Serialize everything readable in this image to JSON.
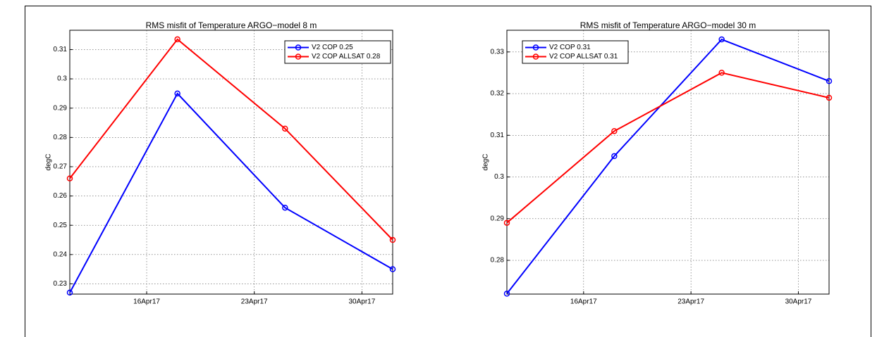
{
  "chart_data": [
    {
      "type": "line",
      "title": "RMS misfit of Temperature ARGO−model 8 m",
      "ylabel": "degC",
      "x": [
        "2017-04-11",
        "2017-04-18",
        "2017-04-25",
        "2017-05-02"
      ],
      "xlim": [
        "2017-04-11",
        "2017-05-02"
      ],
      "xticks": [
        {
          "value": "2017-04-16",
          "label": "16Apr17"
        },
        {
          "value": "2017-04-23",
          "label": "23Apr17"
        },
        {
          "value": "2017-04-30",
          "label": "30Apr17"
        }
      ],
      "ylim": [
        0.2265,
        0.3166
      ],
      "yticks": [
        0.23,
        0.24,
        0.25,
        0.26,
        0.27,
        0.28,
        0.29,
        0.3,
        0.31
      ],
      "grid": true,
      "legend": "upper right",
      "series": [
        {
          "name": "V2 COP 0.25",
          "color": "#0000ff",
          "values": [
            0.227,
            0.295,
            0.256,
            0.235
          ]
        },
        {
          "name": "V2 COP ALLSAT 0.28",
          "color": "#ff0000",
          "values": [
            0.266,
            0.3135,
            0.283,
            0.245
          ]
        }
      ]
    },
    {
      "type": "line",
      "title": "RMS misfit of Temperature ARGO−model 30 m",
      "ylabel": "degC",
      "x": [
        "2017-04-11",
        "2017-04-18",
        "2017-04-25",
        "2017-05-02"
      ],
      "xlim": [
        "2017-04-11",
        "2017-05-02"
      ],
      "xticks": [
        {
          "value": "2017-04-16",
          "label": "16Apr17"
        },
        {
          "value": "2017-04-23",
          "label": "23Apr17"
        },
        {
          "value": "2017-04-30",
          "label": "30Apr17"
        }
      ],
      "ylim": [
        0.2719,
        0.3352
      ],
      "yticks": [
        0.28,
        0.29,
        0.3,
        0.31,
        0.32,
        0.33
      ],
      "grid": true,
      "legend": "upper left",
      "series": [
        {
          "name": "V2 COP 0.31",
          "color": "#0000ff",
          "values": [
            0.272,
            0.305,
            0.333,
            0.323
          ]
        },
        {
          "name": "V2 COP ALLSAT 0.31",
          "color": "#ff0000",
          "values": [
            0.289,
            0.311,
            0.325,
            0.319
          ]
        }
      ]
    }
  ]
}
